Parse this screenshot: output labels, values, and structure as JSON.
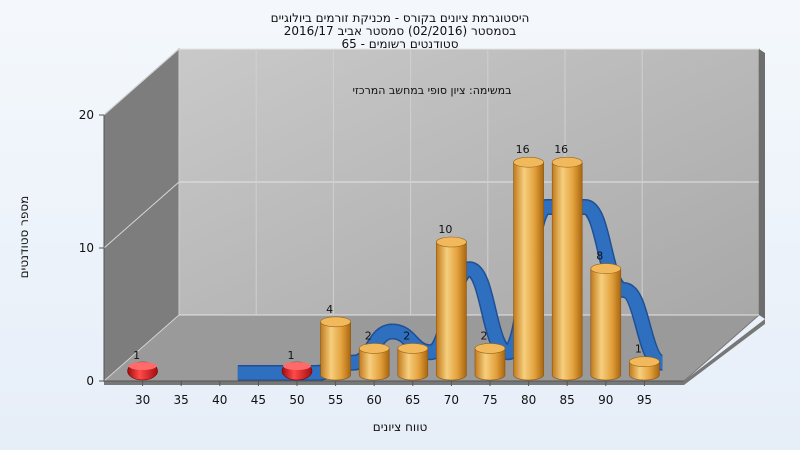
{
  "chart_data": {
    "type": "bar",
    "title_lines": [
      "היסטוגרמת ציונים בקורס - מכניקת זורמים ביולוגיים",
      "בסמסטר  (02/2016)  סמסטר אביב 2016/17",
      "סטודנטים רשומים - 65"
    ],
    "annotation": "במשימה: ציון סופי במחשב המרכזי",
    "xlabel": "טווח ציונים",
    "ylabel": "מספר סטודנטים",
    "x_ticks": [
      "30",
      "35",
      "40",
      "45",
      "50",
      "55",
      "60",
      "65",
      "70",
      "75",
      "80",
      "85",
      "90",
      "95"
    ],
    "y_ticks": [
      "0",
      "10",
      "20"
    ],
    "ylim": [
      0,
      20
    ],
    "bars": [
      {
        "x": 30,
        "value": 1,
        "label": "1",
        "color": "red"
      },
      {
        "x": 50,
        "value": 1,
        "label": "1",
        "color": "red"
      },
      {
        "x": 55,
        "value": 4,
        "label": "4",
        "color": "orange"
      },
      {
        "x": 60,
        "value": 2,
        "label": "2",
        "color": "orange"
      },
      {
        "x": 65,
        "value": 2,
        "label": "2",
        "color": "orange"
      },
      {
        "x": 70,
        "value": 10,
        "label": "10",
        "color": "orange"
      },
      {
        "x": 75,
        "value": 2,
        "label": "2",
        "color": "orange"
      },
      {
        "x": 80,
        "value": 16,
        "label": "16",
        "color": "orange"
      },
      {
        "x": 85,
        "value": 16,
        "label": "16",
        "color": "orange"
      },
      {
        "x": 90,
        "value": 8,
        "label": "8",
        "color": "orange"
      },
      {
        "x": 95,
        "value": 1,
        "label": "1",
        "color": "orange"
      }
    ],
    "curve_series": {
      "type": "area-ribbon",
      "color": "#2f6fc0",
      "x": [
        40,
        45,
        50,
        55,
        60,
        65,
        70,
        75,
        80,
        85,
        90,
        95
      ],
      "values": [
        0,
        0,
        0,
        1,
        4,
        2,
        10,
        2,
        16,
        16,
        8,
        1
      ]
    },
    "colors": {
      "back_wall": "#b9b9b9",
      "side_wall": "#7d7d7d",
      "floor": "#9a9a9a",
      "bar_orange": "#e7a94a",
      "bar_red": "#d91a1a",
      "curve": "#2f6fc0"
    }
  }
}
